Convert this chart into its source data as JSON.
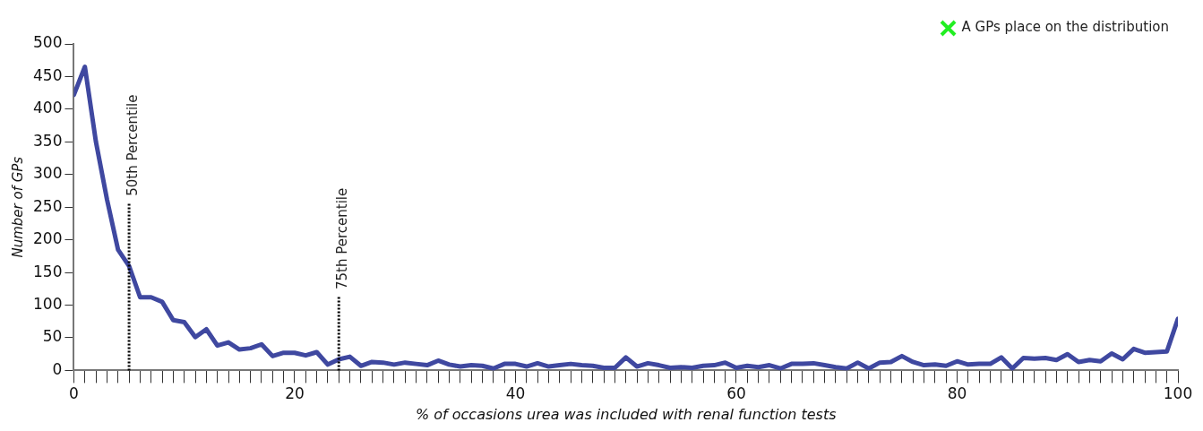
{
  "chart_data": {
    "type": "line",
    "xlabel": "% of occasions urea was included with renal function tests",
    "ylabel": "Number of GPs",
    "x": [
      0,
      1,
      2,
      3,
      4,
      5,
      6,
      7,
      8,
      9,
      10,
      11,
      12,
      13,
      14,
      15,
      16,
      17,
      18,
      19,
      20,
      21,
      22,
      23,
      24,
      25,
      26,
      27,
      28,
      29,
      30,
      31,
      32,
      33,
      34,
      35,
      36,
      37,
      38,
      39,
      40,
      41,
      42,
      43,
      44,
      45,
      46,
      47,
      48,
      49,
      50,
      51,
      52,
      53,
      54,
      55,
      56,
      57,
      58,
      59,
      60,
      61,
      62,
      63,
      64,
      65,
      66,
      67,
      68,
      69,
      70,
      71,
      72,
      73,
      74,
      75,
      76,
      77,
      78,
      79,
      80,
      81,
      82,
      83,
      84,
      85,
      86,
      87,
      88,
      89,
      90,
      91,
      92,
      93,
      94,
      95,
      96,
      97,
      98,
      99,
      100
    ],
    "series": [
      {
        "color": "#3f48a0",
        "values": [
          422,
          465,
          350,
          262,
          185,
          160,
          112,
          112,
          105,
          77,
          74,
          51,
          63,
          38,
          43,
          32,
          34,
          40,
          22,
          27,
          27,
          23,
          28,
          9,
          17,
          21,
          7,
          13,
          12,
          9,
          12,
          10,
          8,
          15,
          9,
          6,
          8,
          7,
          3,
          10,
          10,
          6,
          11,
          6,
          8,
          10,
          8,
          7,
          4,
          4,
          20,
          6,
          11,
          8,
          4,
          5,
          4,
          7,
          8,
          12,
          4,
          7,
          5,
          8,
          3,
          10,
          10,
          11,
          8,
          5,
          3,
          12,
          3,
          12,
          13,
          22,
          13,
          8,
          9,
          7,
          14,
          9,
          10,
          10,
          20,
          3,
          19,
          18,
          19,
          16,
          25,
          13,
          16,
          14,
          26,
          17,
          33,
          27,
          28,
          29,
          79
        ]
      },
      {
        "type": "scatter",
        "name": "A GPs place on the distribution",
        "color": "#22ee22",
        "marker": "cross",
        "values": [
          null,
          null,
          null,
          null,
          null,
          null,
          null,
          null,
          null,
          null,
          null,
          null,
          null,
          null,
          null,
          null,
          null,
          null,
          null,
          null,
          null,
          null,
          null,
          null,
          null,
          null,
          null,
          null,
          null,
          null,
          null,
          null,
          null,
          null,
          null,
          null,
          null,
          null,
          null,
          null,
          null,
          null,
          null,
          null,
          null,
          null,
          null,
          null,
          null,
          null,
          null,
          null,
          null,
          null,
          null,
          null,
          null,
          null,
          null,
          null,
          null,
          null,
          null,
          null,
          null,
          null,
          null,
          null,
          null,
          null,
          null,
          null,
          null,
          null,
          null,
          null,
          null,
          null,
          null,
          null,
          null,
          null,
          null,
          null,
          null,
          null,
          null,
          null,
          null,
          null,
          null,
          null,
          null,
          null,
          null,
          null,
          null,
          null,
          null,
          null,
          null
        ]
      }
    ],
    "xlim": [
      0,
      100
    ],
    "xticks": [
      0,
      {
        "value": 1,
        "label": null
      },
      {
        "value": 2,
        "label": null
      },
      {
        "value": 3,
        "label": null
      },
      {
        "value": 4,
        "label": null
      },
      {
        "value": 5,
        "label": null
      },
      {
        "value": 6,
        "label": null
      },
      {
        "value": 7,
        "label": null
      },
      {
        "value": 8,
        "label": null
      },
      {
        "value": 9,
        "label": null
      },
      {
        "value": 10,
        "label": null
      },
      {
        "value": 11,
        "label": null
      },
      {
        "value": 12,
        "label": null
      },
      {
        "value": 13,
        "label": null
      },
      {
        "value": 14,
        "label": null
      },
      {
        "value": 15,
        "label": null
      },
      {
        "value": 16,
        "label": null
      },
      {
        "value": 17,
        "label": null
      },
      {
        "value": 18,
        "label": null
      },
      {
        "value": 19,
        "label": null
      },
      20,
      {
        "value": 21,
        "label": null
      },
      {
        "value": 22,
        "label": null
      },
      {
        "value": 23,
        "label": null
      },
      {
        "value": 24,
        "label": null
      },
      {
        "value": 25,
        "label": null
      },
      {
        "value": 26,
        "label": null
      },
      {
        "value": 27,
        "label": null
      },
      {
        "value": 28,
        "label": null
      },
      {
        "value": 29,
        "label": null
      },
      {
        "value": 30,
        "label": null
      },
      {
        "value": 31,
        "label": null
      },
      {
        "value": 32,
        "label": null
      },
      {
        "value": 33,
        "label": null
      },
      {
        "value": 34,
        "label": null
      },
      {
        "value": 35,
        "label": null
      },
      {
        "value": 36,
        "label": null
      },
      {
        "value": 37,
        "label": null
      },
      {
        "value": 38,
        "label": null
      },
      {
        "value": 39,
        "label": null
      },
      40,
      {
        "value": 41,
        "label": null
      },
      {
        "value": 42,
        "label": null
      },
      {
        "value": 43,
        "label": null
      },
      {
        "value": 44,
        "label": null
      },
      {
        "value": 45,
        "label": null
      },
      {
        "value": 46,
        "label": null
      },
      {
        "value": 47,
        "label": null
      },
      {
        "value": 48,
        "label": null
      },
      {
        "value": 49,
        "label": null
      },
      {
        "value": 50,
        "label": null
      },
      {
        "value": 51,
        "label": null
      },
      {
        "value": 52,
        "label": null
      },
      {
        "value": 53,
        "label": null
      },
      {
        "value": 54,
        "label": null
      },
      {
        "value": 55,
        "label": null
      },
      {
        "value": 56,
        "label": null
      },
      {
        "value": 57,
        "label": null
      },
      {
        "value": 58,
        "label": null
      },
      {
        "value": 59,
        "label": null
      },
      60,
      {
        "value": 61,
        "label": null
      },
      {
        "value": 62,
        "label": null
      },
      {
        "value": 63,
        "label": null
      },
      {
        "value": 64,
        "label": null
      },
      {
        "value": 65,
        "label": null
      },
      {
        "value": 66,
        "label": null
      },
      {
        "value": 67,
        "label": null
      },
      {
        "value": 68,
        "label": null
      },
      {
        "value": 69,
        "label": null
      },
      {
        "value": 70,
        "label": null
      },
      {
        "value": 71,
        "label": null
      },
      {
        "value": 72,
        "label": null
      },
      {
        "value": 73,
        "label": null
      },
      {
        "value": 74,
        "label": null
      },
      {
        "value": 75,
        "label": null
      },
      {
        "value": 76,
        "label": null
      },
      {
        "value": 77,
        "label": null
      },
      {
        "value": 78,
        "label": null
      },
      {
        "value": 79,
        "label": null
      },
      80,
      {
        "value": 81,
        "label": null
      },
      {
        "value": 82,
        "label": null
      },
      {
        "value": 83,
        "label": null
      },
      {
        "value": 84,
        "label": null
      },
      {
        "value": 85,
        "label": null
      },
      {
        "value": 86,
        "label": null
      },
      {
        "value": 87,
        "label": null
      },
      {
        "value": 88,
        "label": null
      },
      {
        "value": 89,
        "label": null
      },
      {
        "value": 90,
        "label": null
      },
      {
        "value": 91,
        "label": null
      },
      {
        "value": 92,
        "label": null
      },
      {
        "value": 93,
        "label": null
      },
      {
        "value": 94,
        "label": null
      },
      {
        "value": 95,
        "label": null
      },
      {
        "value": 96,
        "label": null
      },
      {
        "value": 97,
        "label": null
      },
      {
        "value": 98,
        "label": null
      },
      {
        "value": 99,
        "label": null
      },
      100
    ],
    "ylim": [
      0,
      500
    ],
    "yticks": [
      0,
      50,
      100,
      150,
      200,
      250,
      300,
      350,
      400,
      450,
      500
    ],
    "ref_lines": [
      {
        "axis": "x",
        "value": 5,
        "label": "50th Percentile",
        "line_style": "dotted"
      },
      {
        "axis": "x",
        "value": 24,
        "label": "75th Percentile",
        "line_style": "dotted"
      }
    ],
    "grid": false,
    "legend": "top right"
  }
}
